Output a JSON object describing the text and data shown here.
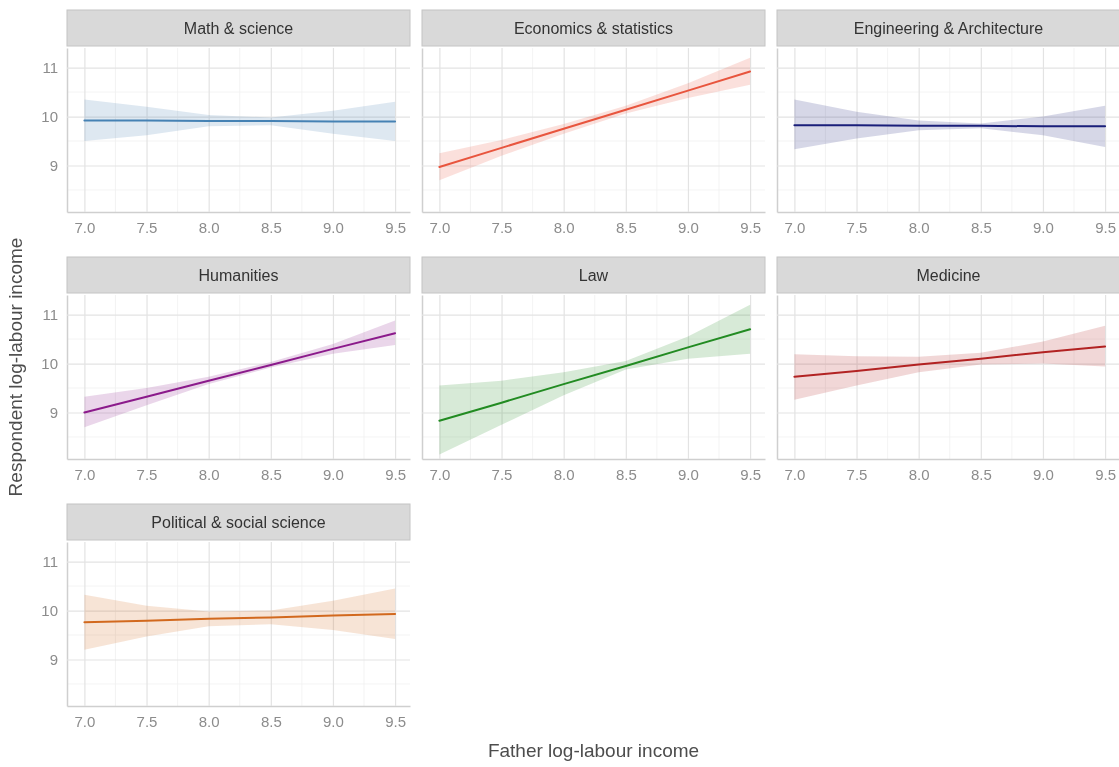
{
  "chart_data": [
    {
      "type": "line",
      "title": "Math & science",
      "xlabel": "Father log-labour income",
      "ylabel": "Respondent log-labour income",
      "xlim": [
        6.86,
        9.62
      ],
      "xticks": [
        {
          "value": 7,
          "label": "7.0"
        },
        {
          "value": 7.5,
          "label": "7.5"
        },
        {
          "value": 8,
          "label": "8.0"
        },
        {
          "value": 8.5,
          "label": "8.5"
        },
        {
          "value": 9,
          "label": "9.0"
        },
        {
          "value": 9.5,
          "label": "9.5"
        }
      ],
      "ylim": [
        8.05,
        11.4
      ],
      "yticks": [
        9,
        10,
        11
      ],
      "grid": true,
      "series": [
        {
          "color": "#4682b4",
          "x": [
            7,
            7.5,
            8,
            8.5,
            9,
            9.5
          ],
          "values": [
            9.92,
            9.92,
            9.91,
            9.91,
            9.9,
            9.9
          ],
          "lower": [
            9.5,
            9.62,
            9.8,
            9.82,
            9.65,
            9.5
          ],
          "upper": [
            10.35,
            10.2,
            10.03,
            9.98,
            10.12,
            10.3
          ]
        }
      ]
    },
    {
      "type": "line",
      "title": "Economics & statistics",
      "xlim": [
        6.86,
        9.62
      ],
      "xticks": [
        {
          "value": 7,
          "label": "7.0"
        },
        {
          "value": 7.5,
          "label": "7.5"
        },
        {
          "value": 8,
          "label": "8.0"
        },
        {
          "value": 8.5,
          "label": "8.5"
        },
        {
          "value": 9,
          "label": "9.0"
        },
        {
          "value": 9.5,
          "label": "9.5"
        }
      ],
      "ylim": [
        8.05,
        11.4
      ],
      "yticks": [
        9,
        10,
        11
      ],
      "grid": true,
      "tick_labels": "x",
      "series": [
        {
          "color": "#e8553e",
          "x": [
            7,
            7.5,
            8,
            8.5,
            9,
            9.5
          ],
          "values": [
            8.97,
            9.36,
            9.75,
            10.14,
            10.53,
            10.92
          ],
          "lower": [
            8.7,
            9.2,
            9.65,
            10.06,
            10.38,
            10.65
          ],
          "upper": [
            9.25,
            9.52,
            9.85,
            10.22,
            10.68,
            11.2
          ]
        }
      ]
    },
    {
      "type": "line",
      "title": "Engineering & Architecture",
      "xlim": [
        6.86,
        9.62
      ],
      "xticks": [
        {
          "value": 7,
          "label": "7.0"
        },
        {
          "value": 7.5,
          "label": "7.5"
        },
        {
          "value": 8,
          "label": "8.0"
        },
        {
          "value": 8.5,
          "label": "8.5"
        },
        {
          "value": 9,
          "label": "9.0"
        },
        {
          "value": 9.5,
          "label": "9.5"
        }
      ],
      "ylim": [
        8.05,
        11.4
      ],
      "yticks": [
        9,
        10,
        11
      ],
      "grid": true,
      "tick_labels": "x",
      "series": [
        {
          "color": "#1a1f7a",
          "x": [
            7,
            7.5,
            8,
            8.5,
            9,
            9.5
          ],
          "values": [
            9.82,
            9.82,
            9.81,
            9.81,
            9.8,
            9.8
          ],
          "lower": [
            9.33,
            9.55,
            9.72,
            9.76,
            9.62,
            9.38
          ],
          "upper": [
            10.35,
            10.1,
            9.92,
            9.86,
            10.0,
            10.22
          ]
        }
      ]
    },
    {
      "type": "line",
      "title": "Humanities",
      "xlim": [
        6.86,
        9.62
      ],
      "xticks": [
        {
          "value": 7,
          "label": "7.0"
        },
        {
          "value": 7.5,
          "label": "7.5"
        },
        {
          "value": 8,
          "label": "8.0"
        },
        {
          "value": 8.5,
          "label": "8.5"
        },
        {
          "value": 9,
          "label": "9.0"
        },
        {
          "value": 9.5,
          "label": "9.5"
        }
      ],
      "ylim": [
        8.05,
        11.4
      ],
      "yticks": [
        9,
        10,
        11
      ],
      "grid": true,
      "series": [
        {
          "color": "#8b1a8b",
          "x": [
            7,
            7.5,
            8,
            8.5,
            9,
            9.5
          ],
          "values": [
            9.0,
            9.32,
            9.65,
            9.97,
            10.3,
            10.62
          ],
          "lower": [
            8.7,
            9.15,
            9.58,
            9.92,
            10.2,
            10.38
          ],
          "upper": [
            9.32,
            9.5,
            9.73,
            10.03,
            10.4,
            10.88
          ]
        }
      ]
    },
    {
      "type": "line",
      "title": "Law",
      "xlim": [
        6.86,
        9.62
      ],
      "xticks": [
        {
          "value": 7,
          "label": "7.0"
        },
        {
          "value": 7.5,
          "label": "7.5"
        },
        {
          "value": 8,
          "label": "8.0"
        },
        {
          "value": 8.5,
          "label": "8.5"
        },
        {
          "value": 9,
          "label": "9.0"
        },
        {
          "value": 9.5,
          "label": "9.5"
        }
      ],
      "ylim": [
        8.05,
        11.4
      ],
      "yticks": [
        9,
        10,
        11
      ],
      "grid": true,
      "tick_labels": "x",
      "series": [
        {
          "color": "#228b22",
          "x": [
            7,
            7.5,
            8,
            8.5,
            9,
            9.5
          ],
          "values": [
            8.83,
            9.2,
            9.58,
            9.95,
            10.33,
            10.7
          ],
          "lower": [
            8.14,
            8.75,
            9.35,
            9.88,
            10.1,
            10.2
          ],
          "upper": [
            9.55,
            9.65,
            9.82,
            10.05,
            10.55,
            11.2
          ]
        }
      ]
    },
    {
      "type": "line",
      "title": "Medicine",
      "xlim": [
        6.86,
        9.62
      ],
      "xticks": [
        {
          "value": 7,
          "label": "7.0"
        },
        {
          "value": 7.5,
          "label": "7.5"
        },
        {
          "value": 8,
          "label": "8.0"
        },
        {
          "value": 8.5,
          "label": "8.5"
        },
        {
          "value": 9,
          "label": "9.0"
        },
        {
          "value": 9.5,
          "label": "9.5"
        }
      ],
      "ylim": [
        8.05,
        11.4
      ],
      "yticks": [
        9,
        10,
        11
      ],
      "grid": true,
      "tick_labels": "x",
      "series": [
        {
          "color": "#b22222",
          "x": [
            7,
            7.5,
            8,
            8.5,
            9,
            9.5
          ],
          "values": [
            9.73,
            9.85,
            9.98,
            10.1,
            10.23,
            10.35
          ],
          "lower": [
            9.26,
            9.55,
            9.82,
            9.98,
            10.0,
            9.94
          ],
          "upper": [
            10.19,
            10.15,
            10.14,
            10.22,
            10.45,
            10.77
          ]
        }
      ]
    },
    {
      "type": "line",
      "title": "Political & social science",
      "xlim": [
        6.86,
        9.62
      ],
      "xticks": [
        {
          "value": 7,
          "label": "7.0"
        },
        {
          "value": 7.5,
          "label": "7.5"
        },
        {
          "value": 8,
          "label": "8.0"
        },
        {
          "value": 8.5,
          "label": "8.5"
        },
        {
          "value": 9,
          "label": "9.0"
        },
        {
          "value": 9.5,
          "label": "9.5"
        }
      ],
      "ylim": [
        8.05,
        11.4
      ],
      "yticks": [
        9,
        10,
        11
      ],
      "grid": true,
      "series": [
        {
          "color": "#d2691e",
          "x": [
            7,
            7.5,
            8,
            8.5,
            9,
            9.5
          ],
          "values": [
            9.76,
            9.79,
            9.83,
            9.86,
            9.9,
            9.93
          ],
          "lower": [
            9.2,
            9.47,
            9.68,
            9.72,
            9.6,
            9.42
          ],
          "upper": [
            10.32,
            10.1,
            9.98,
            10.0,
            10.2,
            10.45
          ]
        }
      ]
    }
  ]
}
